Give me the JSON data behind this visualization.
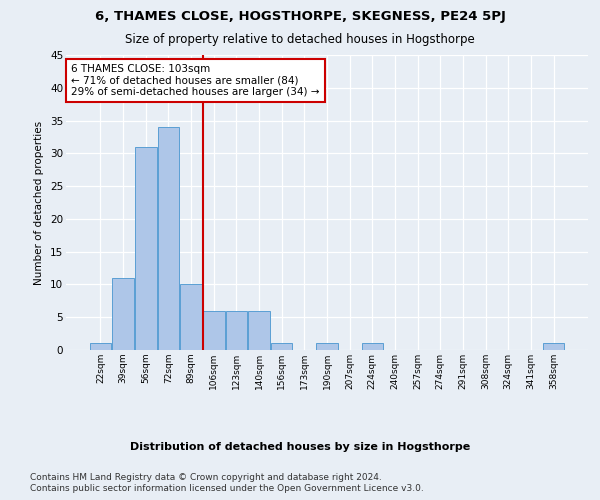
{
  "title1": "6, THAMES CLOSE, HOGSTHORPE, SKEGNESS, PE24 5PJ",
  "title2": "Size of property relative to detached houses in Hogsthorpe",
  "xlabel": "Distribution of detached houses by size in Hogsthorpe",
  "ylabel": "Number of detached properties",
  "categories": [
    "22sqm",
    "39sqm",
    "56sqm",
    "72sqm",
    "89sqm",
    "106sqm",
    "123sqm",
    "140sqm",
    "156sqm",
    "173sqm",
    "190sqm",
    "207sqm",
    "224sqm",
    "240sqm",
    "257sqm",
    "274sqm",
    "291sqm",
    "308sqm",
    "324sqm",
    "341sqm",
    "358sqm"
  ],
  "values": [
    1,
    11,
    31,
    34,
    10,
    6,
    6,
    6,
    1,
    0,
    1,
    0,
    1,
    0,
    0,
    0,
    0,
    0,
    0,
    0,
    1
  ],
  "bar_color": "#aec6e8",
  "bar_edge_color": "#5a9fd4",
  "vline_x": 4.52,
  "vline_color": "#cc0000",
  "annotation_box_text": "6 THAMES CLOSE: 103sqm\n← 71% of detached houses are smaller (84)\n29% of semi-detached houses are larger (34) →",
  "annotation_box_color": "#ffffff",
  "annotation_box_edge": "#cc0000",
  "ylim": [
    0,
    45
  ],
  "yticks": [
    0,
    5,
    10,
    15,
    20,
    25,
    30,
    35,
    40,
    45
  ],
  "footer1": "Contains HM Land Registry data © Crown copyright and database right 2024.",
  "footer2": "Contains public sector information licensed under the Open Government Licence v3.0.",
  "bg_color": "#e8eef5",
  "plot_bg_color": "#e8eef5",
  "grid_color": "#ffffff",
  "title1_fontsize": 9.5,
  "title2_fontsize": 8.5,
  "footer_fontsize": 6.5,
  "annotation_fontsize": 7.5,
  "ylabel_fontsize": 7.5,
  "xlabel_fontsize": 8,
  "xtick_fontsize": 6.5,
  "ytick_fontsize": 7.5
}
